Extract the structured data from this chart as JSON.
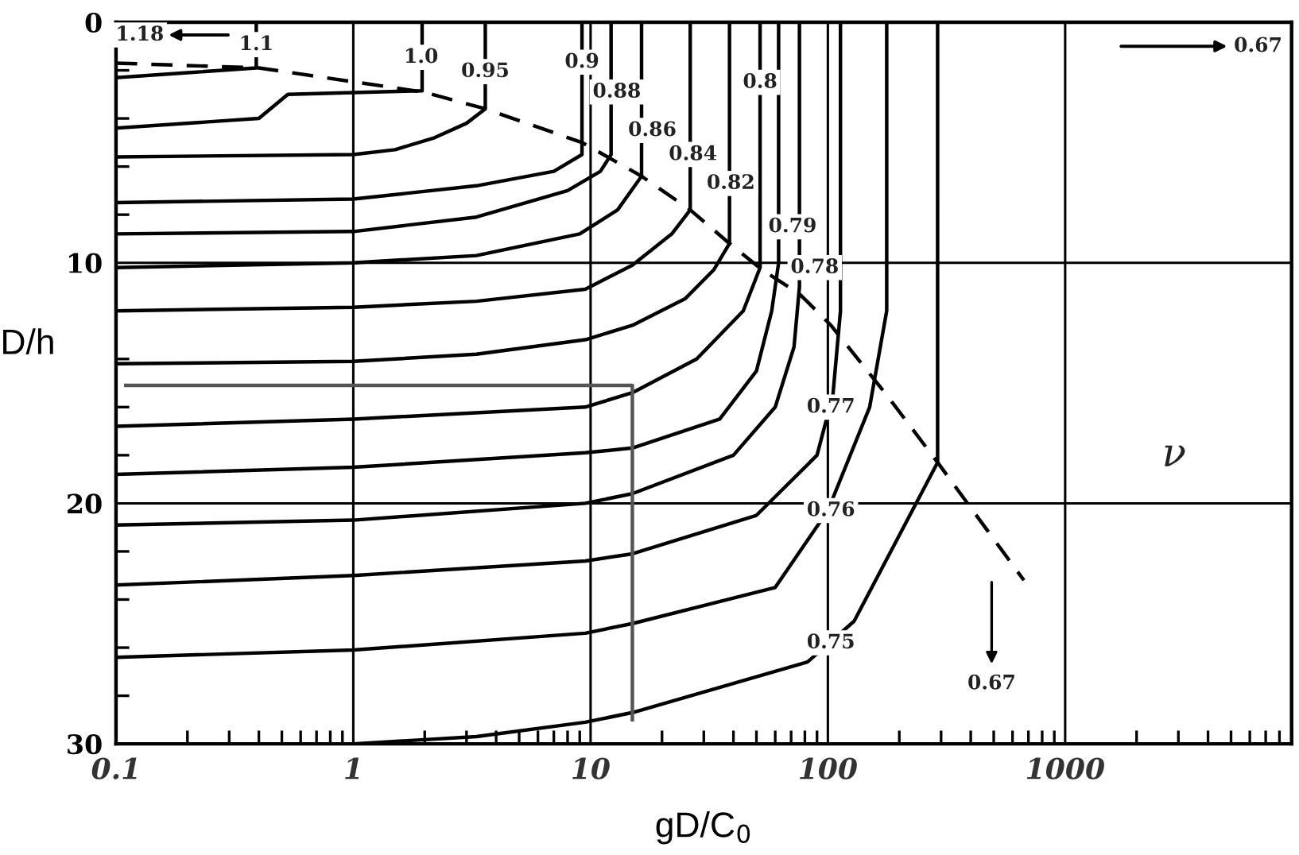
{
  "chart_data": {
    "type": "line",
    "xlabel": "gD/C$_{0}$",
    "ylabel": "D/h",
    "log": "x",
    "xlim": [
      0.1,
      9000
    ],
    "xticks": [
      0.1,
      1,
      10,
      100,
      1000
    ],
    "ylim": [
      30,
      0
    ],
    "yticks": [
      0,
      10,
      20,
      30
    ],
    "grid": true,
    "marker": "none",
    "series": [
      {
        "color": "#000000",
        "x": [
          0.1,
          0.2,
          0.39,
          0.39
        ],
        "values": [
          2.3,
          2.1,
          1.9,
          0
        ]
      },
      {
        "color": "#000000",
        "x": [
          0.1,
          0.4,
          0.53,
          1.95,
          1.95
        ],
        "values": [
          4.4,
          4.0,
          3.0,
          2.85,
          0
        ]
      },
      {
        "color": "#000000",
        "x": [
          0.1,
          1,
          1.5,
          2.2,
          3,
          3.6,
          3.6
        ],
        "values": [
          5.6,
          5.5,
          5.3,
          4.8,
          4.2,
          3.6,
          0
        ]
      },
      {
        "color": "#000000",
        "x": [
          0.1,
          1,
          3.3,
          7,
          9.2,
          9.2
        ],
        "values": [
          7.5,
          7.35,
          6.8,
          6.2,
          5.5,
          0
        ]
      },
      {
        "color": "#000000",
        "x": [
          0.1,
          1,
          3.3,
          8,
          11,
          12.2,
          12.2
        ],
        "values": [
          8.8,
          8.7,
          8.1,
          7.0,
          6.2,
          5.5,
          0
        ]
      },
      {
        "color": "#000000",
        "x": [
          0.1,
          1,
          3.3,
          9,
          13,
          16.4,
          16.4
        ],
        "values": [
          10.2,
          10.0,
          9.7,
          8.8,
          7.8,
          6.4,
          0
        ]
      },
      {
        "color": "#000000",
        "x": [
          0.1,
          1,
          3.3,
          9.5,
          15,
          22,
          26.3,
          26.3
        ],
        "values": [
          12,
          11.85,
          11.6,
          11.1,
          10.1,
          8.8,
          7.8,
          0
        ]
      },
      {
        "color": "#000000",
        "x": [
          0.1,
          1,
          3.3,
          9.5,
          15,
          25,
          33,
          38.5,
          38.5
        ],
        "values": [
          14.2,
          14.1,
          13.8,
          13.2,
          12.6,
          11.5,
          10.3,
          9.2,
          0
        ]
      },
      {
        "color": "#000000",
        "x": [
          0.1,
          1,
          9.5,
          15,
          28,
          44,
          51.8,
          51.8
        ],
        "values": [
          16.8,
          16.5,
          16,
          15.4,
          14,
          12,
          10.2,
          0
        ]
      },
      {
        "color": "#000000",
        "x": [
          0.1,
          1,
          9.5,
          15,
          35,
          50,
          58,
          62,
          62
        ],
        "values": [
          18.8,
          18.5,
          17.9,
          17.7,
          16.5,
          14.5,
          12,
          10,
          0
        ]
      },
      {
        "color": "#000000",
        "x": [
          0.1,
          1,
          9.5,
          15,
          40,
          60,
          72,
          75.9,
          75.9
        ],
        "values": [
          20.9,
          20.7,
          20.0,
          19.6,
          18,
          16,
          13.5,
          11,
          0
        ]
      },
      {
        "color": "#000000",
        "x": [
          0.1,
          1,
          9.5,
          15,
          50,
          90,
          105,
          113,
          113
        ],
        "values": [
          23.4,
          23.0,
          22.4,
          22.1,
          20.5,
          18,
          15.5,
          12,
          0
        ]
      },
      {
        "color": "#000000",
        "x": [
          0.1,
          1,
          9.5,
          15,
          60,
          100,
          150,
          177,
          177
        ],
        "values": [
          26.4,
          26.1,
          25.4,
          25,
          23.5,
          20.3,
          16,
          12,
          0
        ]
      },
      {
        "color": "#000000",
        "x": [
          1,
          3.3,
          9.5,
          15,
          82,
          129,
          290,
          290
        ],
        "values": [
          30,
          29.7,
          29.1,
          28.7,
          26.6,
          24.9,
          18.3,
          0
        ]
      },
      {
        "color": "#000000",
        "line_style": "dashed",
        "x": [
          0.1,
          0.4,
          1.97,
          3.6,
          9.2,
          16.4,
          26.3,
          38.5,
          53,
          76,
          103,
          177,
          290,
          670
        ],
        "values": [
          1.7,
          1.9,
          2.9,
          3.6,
          5.0,
          6.4,
          7.8,
          9.2,
          10.3,
          11.3,
          12.6,
          15.5,
          18.3,
          23.2
        ]
      },
      {
        "color": "#555555",
        "x": [
          0.11,
          15,
          15
        ],
        "values": [
          15.1,
          15.1,
          29
        ]
      }
    ],
    "annotations": [
      {
        "text": "1.1",
        "x": 0.39,
        "y": 0.93
      },
      {
        "text": "1.0",
        "x": 1.93,
        "y": 1.46
      },
      {
        "text": "0.95",
        "x": 3.6,
        "y": 2.05
      },
      {
        "text": "0.9",
        "x": 9.2,
        "y": 1.66
      },
      {
        "text": "0.88",
        "x": 12.9,
        "y": 2.9
      },
      {
        "text": "0.86",
        "x": 18.2,
        "y": 4.5
      },
      {
        "text": "0.84",
        "x": 27,
        "y": 5.5
      },
      {
        "text": "0.82",
        "x": 39,
        "y": 6.7
      },
      {
        "text": "0.8",
        "x": 51.8,
        "y": 2.5
      },
      {
        "text": "0.79",
        "x": 71,
        "y": 8.5
      },
      {
        "text": "0.78",
        "x": 88,
        "y": 10.2
      },
      {
        "text": "0.77",
        "x": 103,
        "y": 16
      },
      {
        "text": "0.76",
        "x": 103,
        "y": 20.3
      },
      {
        "text": "0.75",
        "x": 103,
        "y": 25.8
      },
      {
        "text": "1.18",
        "x": 0.126,
        "y": 0.53
      },
      {
        "text": "0.67",
        "x": 6500,
        "y": 1.0
      },
      {
        "text": "0.67",
        "x": 490,
        "y": 27.5
      },
      "ν"
    ]
  }
}
